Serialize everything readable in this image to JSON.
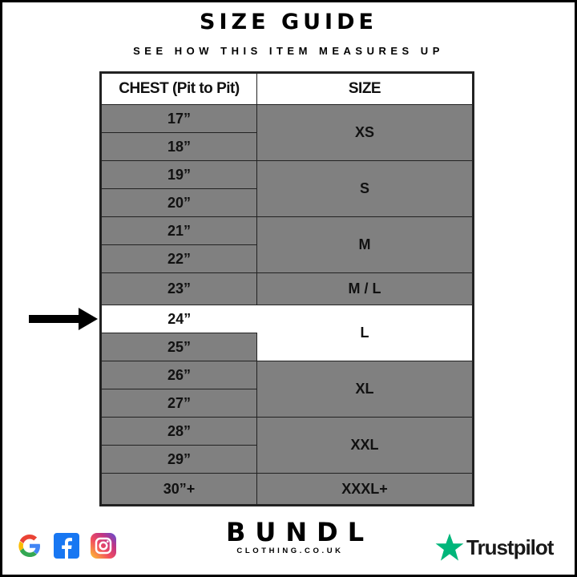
{
  "title": "SIZE GUIDE",
  "subtitle": "SEE HOW THIS ITEM MEASURES UP",
  "table": {
    "headers": [
      "CHEST (Pit to Pit)",
      "SIZE"
    ],
    "chest": [
      "17”",
      "18”",
      "19”",
      "20”",
      "21”",
      "22”",
      "23”",
      "24”",
      "25”",
      "26”",
      "27”",
      "28”",
      "29”",
      "30”+"
    ],
    "sizes": [
      "XS",
      "S",
      "M",
      "M / L",
      "L",
      "XL",
      "XXL",
      "XXXL+"
    ],
    "highlighted_chest": "24”",
    "highlighted_size": "L"
  },
  "colors": {
    "cell": "#808080",
    "highlight": "#ffffff",
    "trustpilot_green": "#00b67a"
  },
  "footer": {
    "social_icons": [
      "google-icon",
      "facebook-icon",
      "instagram-icon"
    ],
    "brand": "BUNDL",
    "brand_sub": "CLOTHING.CO.UK",
    "review": "Trustpilot"
  }
}
